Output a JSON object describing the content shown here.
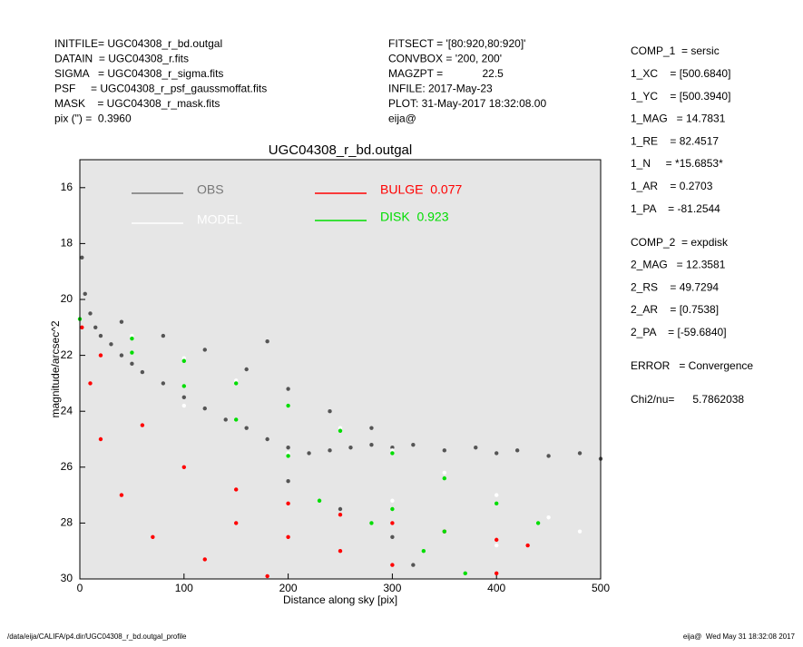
{
  "header": {
    "left": [
      "INITFILE= UGC04308_r_bd.outgal",
      "DATAIN  = UGC04308_r.fits",
      "SIGMA   = UGC04308_r_sigma.fits",
      "PSF     = UGC04308_r_psf_gaussmoffat.fits",
      "MASK    = UGC04308_r_mask.fits",
      "pix (\") =  0.3960"
    ],
    "middle": [
      "FITSECT = '[80:920,80:920]'",
      "CONVBOX = '200, 200'",
      "MAGZPT =             22.5",
      "INFILE: 2017-May-23",
      "PLOT: 31-May-2017 18:32:08.00",
      "eija@"
    ],
    "right": [
      "COMP_1  = sersic",
      "1_XC    = [500.6840]",
      "1_YC    = [500.3940]",
      "1_MAG   = 14.7831",
      "1_RE    = 82.4517",
      "1_N     = *15.6853*",
      "1_AR    = 0.2703",
      "1_PA    = -81.2544",
      "COMP_2  = expdisk",
      "2_MAG   = 12.3581",
      "2_RS    = 49.7294",
      "2_AR    = [0.7538]",
      "2_PA    = [-59.6840]",
      "ERROR   = Convergence",
      "Chi2/nu=      5.7862038"
    ]
  },
  "footer": {
    "left": "/data/eija/CALIFA/p4.dir/UGC04308_r_bd.outgal_profile",
    "right": "eija@  Wed May 31 18:32:08 2017"
  },
  "chart_data": {
    "type": "scatter",
    "title": "UGC04308_r_bd.outgal",
    "x_label": "Distance along sky [pix]",
    "y_label": "magnitude/arcsec^2",
    "xlim": [
      0,
      500
    ],
    "ylim": [
      15,
      30
    ],
    "y_inverted": true,
    "xticks": [
      0,
      100,
      200,
      300,
      400,
      500
    ],
    "yticks": [
      16,
      18,
      20,
      22,
      24,
      26,
      28,
      30
    ],
    "series": [
      {
        "name": "OBS",
        "color": "#555555",
        "legend_color": "#777777",
        "x": [
          2,
          5,
          10,
          15,
          20,
          30,
          40,
          50,
          60,
          80,
          100,
          120,
          140,
          160,
          180,
          200,
          220,
          240,
          260,
          280,
          300,
          320,
          350,
          380,
          400,
          420,
          450,
          480,
          500,
          40,
          80,
          120,
          160,
          200,
          240,
          280,
          180,
          200,
          250,
          300,
          320
        ],
        "y": [
          18.5,
          19.8,
          20.5,
          21.0,
          21.3,
          21.6,
          22.0,
          22.3,
          22.6,
          23.0,
          23.5,
          23.9,
          24.3,
          24.6,
          25.0,
          25.3,
          25.5,
          25.4,
          25.3,
          25.2,
          25.3,
          25.2,
          25.4,
          25.3,
          25.5,
          25.4,
          25.6,
          25.5,
          25.7,
          20.8,
          21.3,
          21.8,
          22.5,
          23.2,
          24.0,
          24.6,
          21.5,
          26.5,
          27.5,
          28.5,
          29.5
        ]
      },
      {
        "name": "MODEL",
        "color": "#ffffff",
        "x": [
          0,
          50,
          100,
          150,
          200,
          250,
          300,
          350,
          400,
          450,
          480,
          100,
          200,
          300,
          400
        ],
        "y": [
          20.7,
          21.3,
          22.1,
          22.9,
          23.8,
          24.6,
          25.4,
          26.2,
          27.0,
          27.8,
          28.3,
          23.8,
          25.5,
          27.2,
          28.8
        ]
      },
      {
        "name": "BULGE  0.077",
        "color": "#ff0000",
        "x": [
          2,
          10,
          20,
          40,
          70,
          120,
          180,
          20,
          60,
          100,
          150,
          200,
          250,
          300,
          350,
          400,
          430,
          200,
          300,
          400,
          250,
          150
        ],
        "y": [
          21,
          23,
          25,
          27,
          28.5,
          29.3,
          29.9,
          22,
          24.5,
          26,
          26.8,
          27.3,
          27.7,
          28,
          28.3,
          28.6,
          28.8,
          28.5,
          29.5,
          29.8,
          29,
          28
        ]
      },
      {
        "name": "DISK  0.923",
        "color": "#00dd00",
        "x": [
          0,
          50,
          100,
          150,
          200,
          250,
          300,
          350,
          400,
          440,
          50,
          100,
          150,
          200,
          230,
          280,
          330,
          370,
          300,
          350
        ],
        "y": [
          20.7,
          21.4,
          22.2,
          23,
          23.8,
          24.7,
          25.5,
          26.4,
          27.3,
          28,
          21.9,
          23.1,
          24.3,
          25.6,
          27.2,
          28,
          29,
          29.8,
          27.5,
          28.3
        ]
      }
    ]
  }
}
